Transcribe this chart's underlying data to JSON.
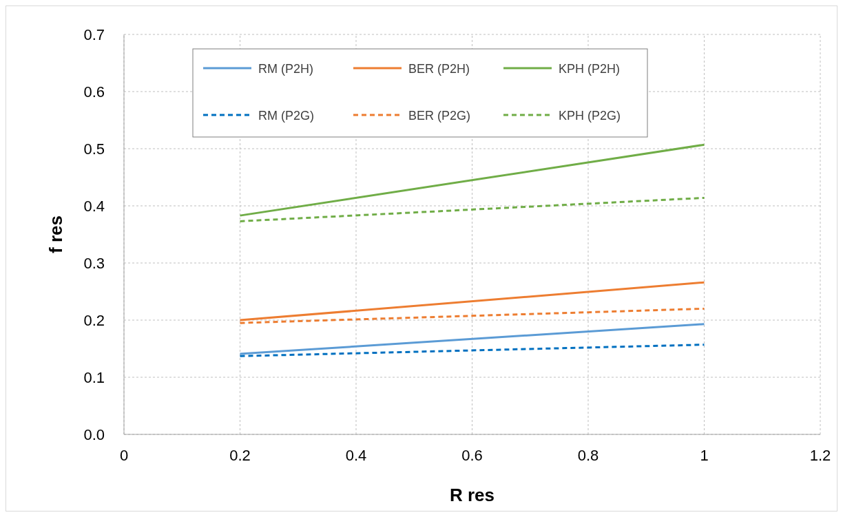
{
  "chart_data": {
    "type": "line",
    "xlabel": "R res",
    "ylabel": "f res",
    "xlim": [
      0,
      1.2
    ],
    "xticks": [
      0,
      0.2,
      0.4,
      0.6,
      0.8,
      1,
      1.2
    ],
    "ylim": [
      0,
      0.7
    ],
    "yticks": [
      {
        "value": 0,
        "label": "0.0"
      },
      0.1,
      0.2,
      0.3,
      0.4,
      0.5,
      0.6,
      0.7
    ],
    "grid": true,
    "legend": "top",
    "marker": "none",
    "x": [
      0.2,
      1
    ],
    "series": [
      {
        "name": "RM (P2H)",
        "color": "#5b9bd5",
        "values": [
          0.141,
          0.193
        ],
        "line_style": "solid"
      },
      {
        "name": "BER (P2H)",
        "color": "#ed7d31",
        "values": [
          0.2,
          0.266
        ],
        "line_style": "solid"
      },
      {
        "name": "KPH (P2H)",
        "color": "#70ad47",
        "values": [
          0.383,
          0.507
        ],
        "line_style": "solid"
      },
      {
        "name": "RM (P2G)",
        "color": "#0070c0",
        "values": [
          0.137,
          0.157
        ],
        "line_style": "dashed"
      },
      {
        "name": "BER (P2G)",
        "color": "#ed7d31",
        "values": [
          0.195,
          0.22
        ],
        "line_style": "dashed"
      },
      {
        "name": "KPH (P2G)",
        "color": "#70ad47",
        "values": [
          0.373,
          0.414
        ],
        "line_style": "dashed"
      }
    ]
  }
}
